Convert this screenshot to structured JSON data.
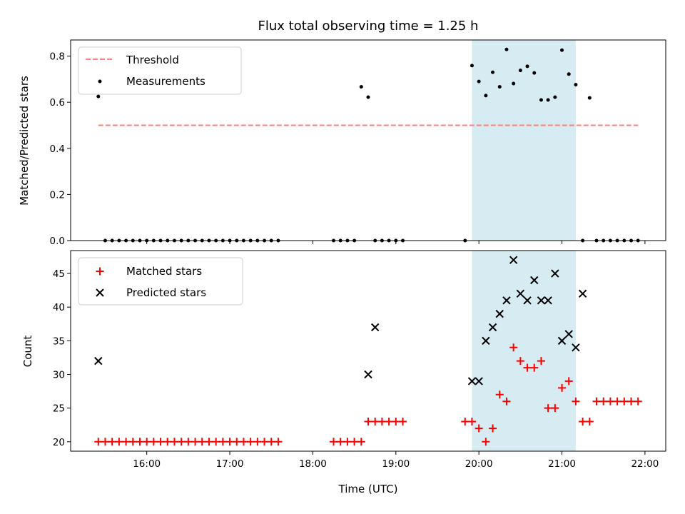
{
  "chart_data": [
    {
      "type": "scatter",
      "title": "Flux total observing time = 1.25 h",
      "xlabel": "",
      "ylabel": "Matched/Predicted stars",
      "xlim": [
        "15:05",
        "22:15"
      ],
      "ylim": [
        0,
        0.87
      ],
      "yticks": [
        0.0,
        0.2,
        0.4,
        0.6,
        0.8
      ],
      "ytick_labels": [
        "0.0",
        "0.2",
        "0.4",
        "0.6",
        "0.8"
      ],
      "legend_placement": "upper-left",
      "highlight_span": [
        "19:55",
        "21:10"
      ],
      "highlight_color": "#add8e6",
      "series": [
        {
          "name": "Threshold",
          "kind": "dashed-line",
          "color": "#ff7f7f",
          "x": [
            "15:25",
            "21:55"
          ],
          "y": [
            0.5,
            0.5
          ]
        },
        {
          "name": "Measurements",
          "kind": "dot",
          "color": "#000000",
          "x": [
            "15:25",
            "15:30",
            "15:35",
            "15:40",
            "15:45",
            "15:50",
            "15:55",
            "16:00",
            "16:05",
            "16:10",
            "16:15",
            "16:20",
            "16:25",
            "16:30",
            "16:35",
            "16:40",
            "16:45",
            "16:50",
            "16:55",
            "17:00",
            "17:05",
            "17:10",
            "17:15",
            "17:20",
            "17:25",
            "17:30",
            "17:35",
            "18:15",
            "18:20",
            "18:25",
            "18:30",
            "18:35",
            "18:40",
            "18:45",
            "18:50",
            "18:55",
            "19:00",
            "19:05",
            "19:50",
            "19:55",
            "20:00",
            "20:05",
            "20:10",
            "20:15",
            "20:20",
            "20:25",
            "20:30",
            "20:35",
            "20:40",
            "20:45",
            "20:50",
            "20:55",
            "21:00",
            "21:05",
            "21:10",
            "21:15",
            "21:20",
            "21:25",
            "21:30",
            "21:35",
            "21:40",
            "21:45",
            "21:50",
            "21:55"
          ],
          "y": [
            0.625,
            0,
            0,
            0,
            0,
            0,
            0,
            0,
            0,
            0,
            0,
            0,
            0,
            0,
            0,
            0,
            0,
            0,
            0,
            0,
            0,
            0,
            0,
            0,
            0,
            0,
            0,
            0,
            0,
            0,
            0,
            0.667,
            0.622,
            0,
            0,
            0,
            0,
            0,
            0,
            0.759,
            0.69,
            0.629,
            0.73,
            0.667,
            0.829,
            0.681,
            0.738,
            0.756,
            0.727,
            0.61,
            0.61,
            0.622,
            0.826,
            0.722,
            0.676,
            0,
            0.619,
            0,
            0,
            0,
            0,
            0,
            0,
            0
          ]
        }
      ]
    },
    {
      "type": "scatter",
      "xlabel": "Time (UTC)",
      "ylabel": "Count",
      "xlim": [
        "15:05",
        "22:15"
      ],
      "ylim": [
        18.6,
        48.4
      ],
      "yticks": [
        20,
        25,
        30,
        35,
        40,
        45
      ],
      "ytick_labels": [
        "20",
        "25",
        "30",
        "35",
        "40",
        "45"
      ],
      "xticks": [
        "16:00",
        "17:00",
        "18:00",
        "19:00",
        "20:00",
        "21:00",
        "22:00"
      ],
      "legend_placement": "upper-left",
      "highlight_span": [
        "19:55",
        "21:10"
      ],
      "highlight_color": "#add8e6",
      "series": [
        {
          "name": "Matched stars",
          "kind": "plus",
          "color": "#ff0000",
          "x": [
            "15:25",
            "15:30",
            "15:35",
            "15:40",
            "15:45",
            "15:50",
            "15:55",
            "16:00",
            "16:05",
            "16:10",
            "16:15",
            "16:20",
            "16:25",
            "16:30",
            "16:35",
            "16:40",
            "16:45",
            "16:50",
            "16:55",
            "17:00",
            "17:05",
            "17:10",
            "17:15",
            "17:20",
            "17:25",
            "17:30",
            "17:35",
            "18:15",
            "18:20",
            "18:25",
            "18:30",
            "18:35",
            "18:40",
            "18:45",
            "18:50",
            "18:55",
            "19:00",
            "19:05",
            "19:50",
            "19:55",
            "20:00",
            "20:05",
            "20:10",
            "20:15",
            "20:20",
            "20:25",
            "20:30",
            "20:35",
            "20:40",
            "20:45",
            "20:50",
            "20:55",
            "21:00",
            "21:05",
            "21:10",
            "21:15",
            "21:20",
            "21:25",
            "21:30",
            "21:35",
            "21:40",
            "21:45",
            "21:50",
            "21:55"
          ],
          "y": [
            20,
            20,
            20,
            20,
            20,
            20,
            20,
            20,
            20,
            20,
            20,
            20,
            20,
            20,
            20,
            20,
            20,
            20,
            20,
            20,
            20,
            20,
            20,
            20,
            20,
            20,
            20,
            20,
            20,
            20,
            20,
            20,
            23,
            23,
            23,
            23,
            23,
            23,
            23,
            23,
            22,
            20,
            22,
            27,
            26,
            34,
            32,
            31,
            31,
            32,
            25,
            25,
            28,
            29,
            26,
            23,
            23,
            26,
            26,
            26,
            26,
            26,
            26,
            26
          ]
        },
        {
          "name": "Predicted stars",
          "kind": "x",
          "color": "#000000",
          "x": [
            "15:25",
            "18:40",
            "18:45",
            "19:55",
            "20:00",
            "20:05",
            "20:10",
            "20:15",
            "20:20",
            "20:25",
            "20:30",
            "20:35",
            "20:40",
            "20:45",
            "20:50",
            "20:55",
            "21:00",
            "21:05",
            "21:10",
            "21:15"
          ],
          "y": [
            32,
            30,
            37,
            29,
            29,
            35,
            37,
            39,
            41,
            47,
            42,
            41,
            44,
            41,
            41,
            45,
            35,
            36,
            34,
            42
          ]
        }
      ]
    }
  ]
}
